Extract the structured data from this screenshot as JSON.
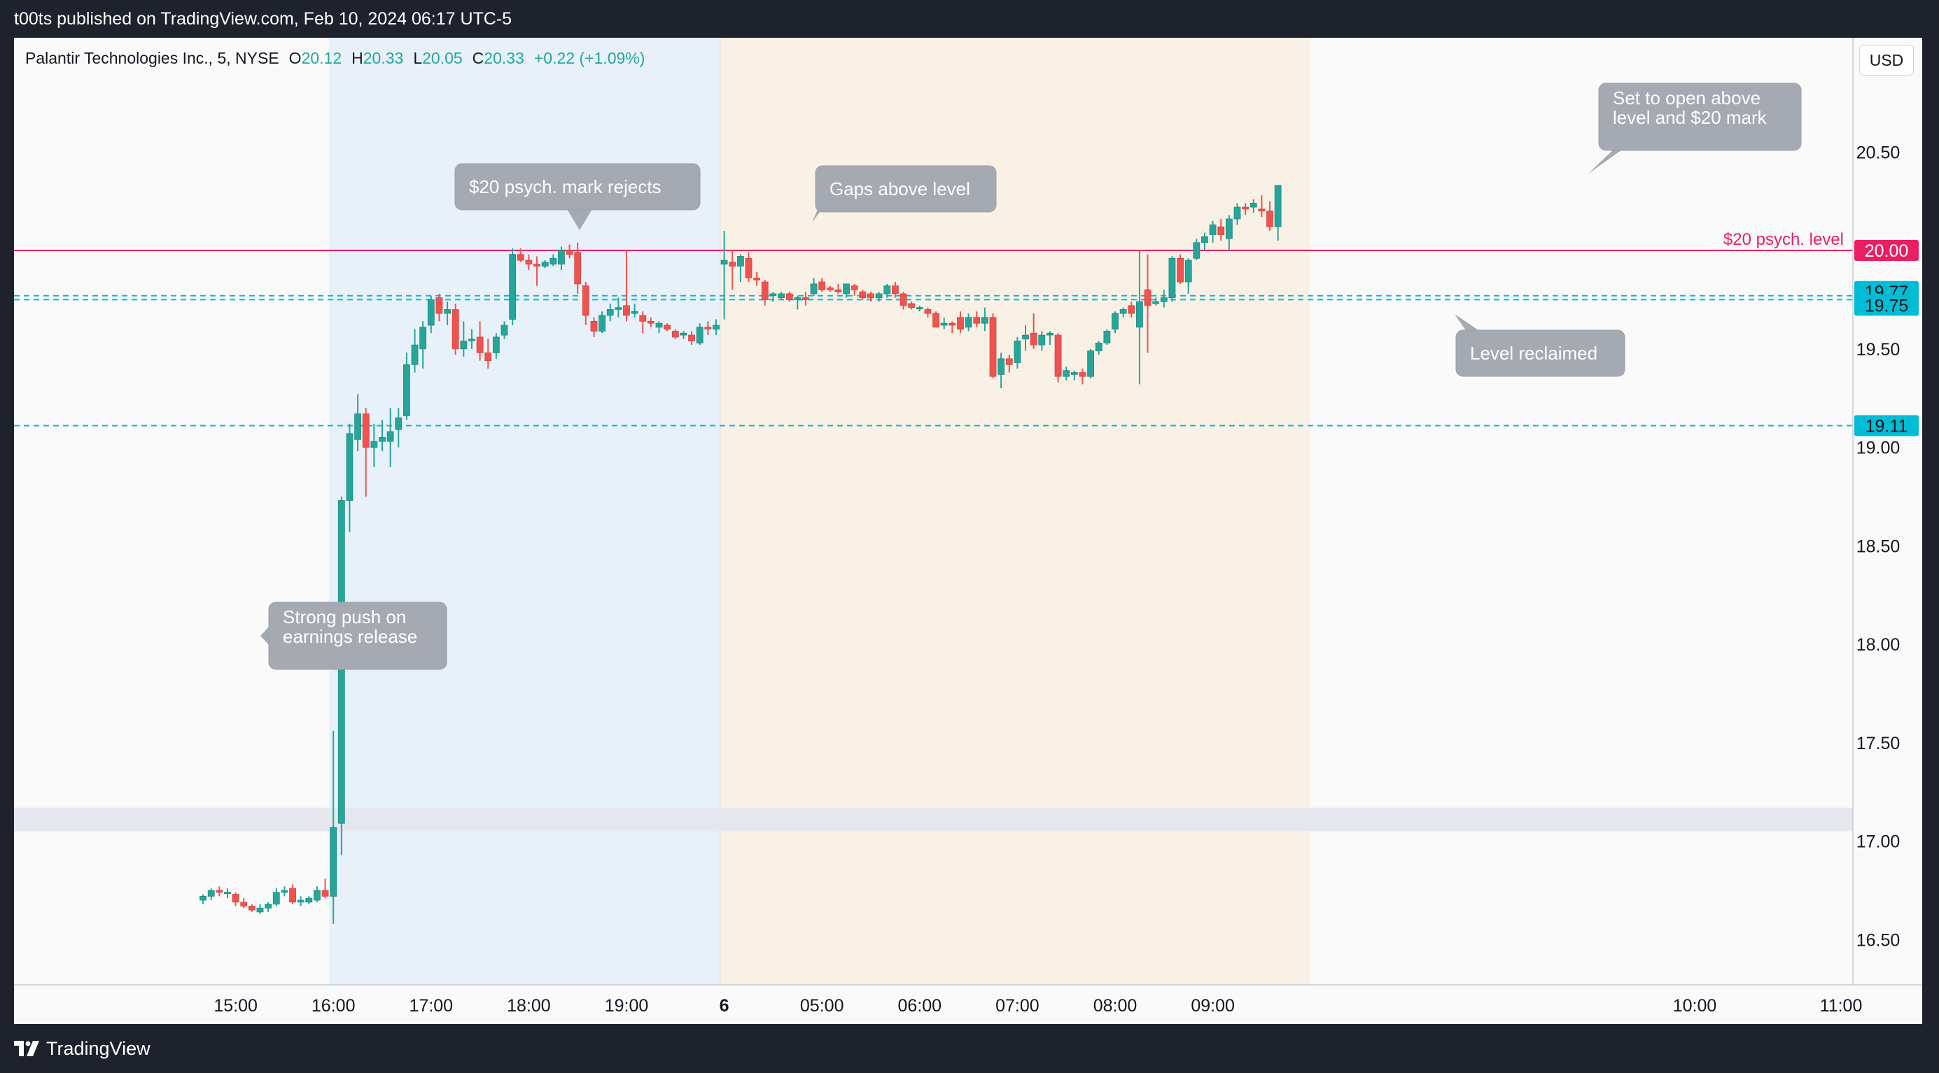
{
  "header": {
    "published_text": "t00ts published on TradingView.com, Feb 10, 2024 06:17 UTC-5"
  },
  "legend": {
    "symbol": "Palantir Technologies Inc., 5, NYSE",
    "open_label": "O",
    "open": "20.12",
    "high_label": "H",
    "high": "20.33",
    "low_label": "L",
    "low": "20.05",
    "close_label": "C",
    "close": "20.33",
    "change": "+0.22 (+1.09%)"
  },
  "currency": "USD",
  "footer": {
    "brand": "TradingView"
  },
  "colors": {
    "up": "#26a69a",
    "down": "#ef5350",
    "level_psych": "#e91e63",
    "level_dashed": "#00bcd4",
    "session_post": "#e8f1fa",
    "session_pre": "#faf1e6",
    "callout": "#a5a9b1"
  },
  "chart_data": {
    "type": "candlestick",
    "symbol": "PLTR",
    "interval": "5",
    "x_tick_labels": [
      "15:00",
      "16:00",
      "17:00",
      "18:00",
      "19:00",
      "6",
      "05:00",
      "06:00",
      "07:00",
      "08:00",
      "09:00",
      "10:00",
      "11:00"
    ],
    "y_tick_labels": [
      "20.50",
      "20.00",
      "19.50",
      "19.00",
      "18.50",
      "18.00",
      "17.50",
      "17.00",
      "16.50"
    ],
    "ylim": [
      16.27,
      21.08
    ],
    "price_levels": [
      {
        "price": 20.0,
        "label": "20.00",
        "color": "#e91e63",
        "style": "solid",
        "name": "$20 psych. level"
      },
      {
        "price": 19.77,
        "label": "19.77",
        "color": "#00bcd4",
        "style": "dashed"
      },
      {
        "price": 19.75,
        "label": "19.75",
        "color": "#00bcd4",
        "style": "dashed"
      },
      {
        "price": 19.11,
        "label": "19.11",
        "color": "#00bcd4",
        "style": "dashed"
      }
    ],
    "gap_zone": [
      17.05,
      17.17
    ],
    "sessions": [
      {
        "name": "post-market",
        "from": "16:00",
        "to": "20:00"
      },
      {
        "name": "pre-market",
        "from": "04:00",
        "to": "09:30"
      }
    ],
    "annotations": [
      {
        "text": "$20 psych. mark rejects",
        "at": "18:30"
      },
      {
        "text": "Gaps above level",
        "at": "04:00"
      },
      {
        "text": "Set to open above level and $20 mark",
        "at": "09:25"
      },
      {
        "text": "Level reclaimed",
        "at": "08:30"
      },
      {
        "text": "Strong push on earnings release",
        "at": "16:25"
      }
    ],
    "annotation_lines": {
      "a0": [
        "$20 psych. mark rejects"
      ],
      "a1": [
        "Gaps above level"
      ],
      "a2": [
        "Set to open above",
        "level and $20 mark"
      ],
      "a3": [
        "Level reclaimed"
      ],
      "a4": [
        "Strong push on",
        "earnings release"
      ]
    },
    "candles": [
      {
        "t": "14:40",
        "o": 16.7,
        "h": 16.73,
        "l": 16.68,
        "c": 16.72
      },
      {
        "t": "14:45",
        "o": 16.72,
        "h": 16.76,
        "l": 16.7,
        "c": 16.75
      },
      {
        "t": "14:50",
        "o": 16.75,
        "h": 16.77,
        "l": 16.72,
        "c": 16.74
      },
      {
        "t": "14:55",
        "o": 16.74,
        "h": 16.76,
        "l": 16.71,
        "c": 16.74
      },
      {
        "t": "15:00",
        "o": 16.73,
        "h": 16.74,
        "l": 16.67,
        "c": 16.69
      },
      {
        "t": "15:05",
        "o": 16.69,
        "h": 16.71,
        "l": 16.66,
        "c": 16.67
      },
      {
        "t": "15:10",
        "o": 16.67,
        "h": 16.68,
        "l": 16.64,
        "c": 16.65
      },
      {
        "t": "15:15",
        "o": 16.64,
        "h": 16.68,
        "l": 16.63,
        "c": 16.66
      },
      {
        "t": "15:20",
        "o": 16.66,
        "h": 16.69,
        "l": 16.64,
        "c": 16.68
      },
      {
        "t": "15:25",
        "o": 16.68,
        "h": 16.76,
        "l": 16.67,
        "c": 16.74
      },
      {
        "t": "15:30",
        "o": 16.74,
        "h": 16.77,
        "l": 16.72,
        "c": 16.75
      },
      {
        "t": "15:35",
        "o": 16.76,
        "h": 16.78,
        "l": 16.68,
        "c": 16.69
      },
      {
        "t": "15:40",
        "o": 16.69,
        "h": 16.72,
        "l": 16.67,
        "c": 16.7
      },
      {
        "t": "15:45",
        "o": 16.69,
        "h": 16.72,
        "l": 16.68,
        "c": 16.71
      },
      {
        "t": "15:50",
        "o": 16.7,
        "h": 16.77,
        "l": 16.69,
        "c": 16.75
      },
      {
        "t": "15:55",
        "o": 16.75,
        "h": 16.81,
        "l": 16.71,
        "c": 16.72
      },
      {
        "t": "16:00",
        "o": 16.72,
        "h": 17.56,
        "l": 16.58,
        "c": 17.07
      },
      {
        "t": "16:05",
        "o": 17.09,
        "h": 18.75,
        "l": 16.93,
        "c": 18.73
      },
      {
        "t": "16:10",
        "o": 18.73,
        "h": 19.12,
        "l": 18.57,
        "c": 19.07
      },
      {
        "t": "16:15",
        "o": 19.04,
        "h": 19.27,
        "l": 18.98,
        "c": 19.17
      },
      {
        "t": "16:20",
        "o": 19.17,
        "h": 19.2,
        "l": 18.75,
        "c": 19.0
      },
      {
        "t": "16:25",
        "o": 19.0,
        "h": 19.12,
        "l": 18.9,
        "c": 19.03
      },
      {
        "t": "16:30",
        "o": 19.03,
        "h": 19.14,
        "l": 18.98,
        "c": 19.05
      },
      {
        "t": "16:35",
        "o": 19.03,
        "h": 19.2,
        "l": 18.9,
        "c": 19.08
      },
      {
        "t": "16:40",
        "o": 19.09,
        "h": 19.2,
        "l": 19.0,
        "c": 19.15
      },
      {
        "t": "16:45",
        "o": 19.16,
        "h": 19.48,
        "l": 19.14,
        "c": 19.42
      },
      {
        "t": "16:50",
        "o": 19.42,
        "h": 19.6,
        "l": 19.38,
        "c": 19.52
      },
      {
        "t": "16:55",
        "o": 19.5,
        "h": 19.64,
        "l": 19.4,
        "c": 19.61
      },
      {
        "t": "17:00",
        "o": 19.62,
        "h": 19.77,
        "l": 19.58,
        "c": 19.75
      },
      {
        "t": "17:05",
        "o": 19.76,
        "h": 19.78,
        "l": 19.64,
        "c": 19.68
      },
      {
        "t": "17:10",
        "o": 19.68,
        "h": 19.74,
        "l": 19.62,
        "c": 19.7
      },
      {
        "t": "17:15",
        "o": 19.7,
        "h": 19.73,
        "l": 19.47,
        "c": 19.5
      },
      {
        "t": "17:20",
        "o": 19.5,
        "h": 19.64,
        "l": 19.46,
        "c": 19.54
      },
      {
        "t": "17:25",
        "o": 19.54,
        "h": 19.6,
        "l": 19.5,
        "c": 19.55
      },
      {
        "t": "17:30",
        "o": 19.56,
        "h": 19.64,
        "l": 19.44,
        "c": 19.48
      },
      {
        "t": "17:35",
        "o": 19.48,
        "h": 19.55,
        "l": 19.4,
        "c": 19.44
      },
      {
        "t": "17:40",
        "o": 19.48,
        "h": 19.58,
        "l": 19.45,
        "c": 19.56
      },
      {
        "t": "17:45",
        "o": 19.57,
        "h": 19.64,
        "l": 19.55,
        "c": 19.62
      },
      {
        "t": "17:50",
        "o": 19.65,
        "h": 20.01,
        "l": 19.62,
        "c": 19.98
      },
      {
        "t": "17:55",
        "o": 19.98,
        "h": 20.01,
        "l": 19.94,
        "c": 19.95
      },
      {
        "t": "18:00",
        "o": 19.95,
        "h": 19.98,
        "l": 19.9,
        "c": 19.93
      },
      {
        "t": "18:05",
        "o": 19.93,
        "h": 19.97,
        "l": 19.82,
        "c": 19.92
      },
      {
        "t": "18:10",
        "o": 19.92,
        "h": 19.95,
        "l": 19.91,
        "c": 19.94
      },
      {
        "t": "18:15",
        "o": 19.93,
        "h": 19.98,
        "l": 19.92,
        "c": 19.96
      },
      {
        "t": "18:20",
        "o": 19.93,
        "h": 20.02,
        "l": 19.9,
        "c": 20.0
      },
      {
        "t": "18:25",
        "o": 20.0,
        "h": 20.03,
        "l": 19.96,
        "c": 19.98
      },
      {
        "t": "18:30",
        "o": 19.99,
        "h": 20.04,
        "l": 19.78,
        "c": 19.83
      },
      {
        "t": "18:35",
        "o": 19.82,
        "h": 19.84,
        "l": 19.62,
        "c": 19.67
      },
      {
        "t": "18:40",
        "o": 19.64,
        "h": 19.66,
        "l": 19.56,
        "c": 19.59
      },
      {
        "t": "18:45",
        "o": 19.59,
        "h": 19.69,
        "l": 19.58,
        "c": 19.67
      },
      {
        "t": "18:50",
        "o": 19.67,
        "h": 19.73,
        "l": 19.64,
        "c": 19.7
      },
      {
        "t": "18:55",
        "o": 19.7,
        "h": 19.76,
        "l": 19.66,
        "c": 19.71
      },
      {
        "t": "19:00",
        "o": 19.72,
        "h": 20.0,
        "l": 19.64,
        "c": 19.67
      },
      {
        "t": "19:05",
        "o": 19.68,
        "h": 19.73,
        "l": 19.66,
        "c": 19.69
      },
      {
        "t": "19:10",
        "o": 19.67,
        "h": 19.69,
        "l": 19.58,
        "c": 19.64
      },
      {
        "t": "19:15",
        "o": 19.64,
        "h": 19.66,
        "l": 19.61,
        "c": 19.63
      },
      {
        "t": "19:20",
        "o": 19.61,
        "h": 19.64,
        "l": 19.58,
        "c": 19.63
      },
      {
        "t": "19:25",
        "o": 19.62,
        "h": 19.63,
        "l": 19.59,
        "c": 19.6
      },
      {
        "t": "19:30",
        "o": 19.59,
        "h": 19.6,
        "l": 19.55,
        "c": 19.56
      },
      {
        "t": "19:35",
        "o": 19.57,
        "h": 19.59,
        "l": 19.55,
        "c": 19.58
      },
      {
        "t": "19:40",
        "o": 19.57,
        "h": 19.59,
        "l": 19.52,
        "c": 19.54
      },
      {
        "t": "19:45",
        "o": 19.53,
        "h": 19.63,
        "l": 19.52,
        "c": 19.61
      },
      {
        "t": "19:50",
        "o": 19.61,
        "h": 19.64,
        "l": 19.57,
        "c": 19.6
      },
      {
        "t": "19:55",
        "o": 19.6,
        "h": 19.65,
        "l": 19.57,
        "c": 19.62
      },
      {
        "t": "04:00",
        "o": 19.93,
        "h": 20.1,
        "l": 19.65,
        "c": 19.95
      },
      {
        "t": "04:05",
        "o": 19.94,
        "h": 20.0,
        "l": 19.8,
        "c": 19.92
      },
      {
        "t": "04:10",
        "o": 19.92,
        "h": 19.98,
        "l": 19.84,
        "c": 19.97
      },
      {
        "t": "04:15",
        "o": 19.96,
        "h": 19.99,
        "l": 19.84,
        "c": 19.86
      },
      {
        "t": "04:20",
        "o": 19.86,
        "h": 19.89,
        "l": 19.82,
        "c": 19.85
      },
      {
        "t": "04:25",
        "o": 19.84,
        "h": 19.85,
        "l": 19.72,
        "c": 19.75
      },
      {
        "t": "04:30",
        "o": 19.77,
        "h": 19.79,
        "l": 19.74,
        "c": 19.78
      },
      {
        "t": "04:35",
        "o": 19.76,
        "h": 19.79,
        "l": 19.75,
        "c": 19.78
      },
      {
        "t": "04:40",
        "o": 19.78,
        "h": 19.79,
        "l": 19.74,
        "c": 19.75
      },
      {
        "t": "04:45",
        "o": 19.75,
        "h": 19.77,
        "l": 19.7,
        "c": 19.76
      },
      {
        "t": "04:50",
        "o": 19.76,
        "h": 19.79,
        "l": 19.72,
        "c": 19.75
      },
      {
        "t": "04:55",
        "o": 19.78,
        "h": 19.86,
        "l": 19.77,
        "c": 19.83
      },
      {
        "t": "05:00",
        "o": 19.84,
        "h": 19.86,
        "l": 19.79,
        "c": 19.8
      },
      {
        "t": "05:05",
        "o": 19.81,
        "h": 19.82,
        "l": 19.79,
        "c": 19.8
      },
      {
        "t": "05:10",
        "o": 19.8,
        "h": 19.83,
        "l": 19.78,
        "c": 19.79
      },
      {
        "t": "05:15",
        "o": 19.78,
        "h": 19.83,
        "l": 19.76,
        "c": 19.83
      },
      {
        "t": "05:20",
        "o": 19.82,
        "h": 19.83,
        "l": 19.77,
        "c": 19.8
      },
      {
        "t": "05:25",
        "o": 19.79,
        "h": 19.8,
        "l": 19.75,
        "c": 19.76
      },
      {
        "t": "05:30",
        "o": 19.78,
        "h": 19.79,
        "l": 19.74,
        "c": 19.76
      },
      {
        "t": "05:35",
        "o": 19.76,
        "h": 19.79,
        "l": 19.74,
        "c": 19.78
      },
      {
        "t": "05:40",
        "o": 19.78,
        "h": 19.83,
        "l": 19.76,
        "c": 19.82
      },
      {
        "t": "05:45",
        "o": 19.82,
        "h": 19.84,
        "l": 19.76,
        "c": 19.78
      },
      {
        "t": "05:50",
        "o": 19.78,
        "h": 19.79,
        "l": 19.7,
        "c": 19.72
      },
      {
        "t": "05:55",
        "o": 19.73,
        "h": 19.74,
        "l": 19.7,
        "c": 19.71
      },
      {
        "t": "06:00",
        "o": 19.71,
        "h": 19.72,
        "l": 19.69,
        "c": 19.71
      },
      {
        "t": "06:05",
        "o": 19.7,
        "h": 19.71,
        "l": 19.66,
        "c": 19.68
      },
      {
        "t": "06:10",
        "o": 19.68,
        "h": 19.69,
        "l": 19.61,
        "c": 19.61
      },
      {
        "t": "06:15",
        "o": 19.62,
        "h": 19.66,
        "l": 19.6,
        "c": 19.63
      },
      {
        "t": "06:20",
        "o": 19.63,
        "h": 19.64,
        "l": 19.58,
        "c": 19.62
      },
      {
        "t": "06:25",
        "o": 19.66,
        "h": 19.69,
        "l": 19.58,
        "c": 19.6
      },
      {
        "t": "06:30",
        "o": 19.61,
        "h": 19.68,
        "l": 19.59,
        "c": 19.66
      },
      {
        "t": "06:35",
        "o": 19.66,
        "h": 19.69,
        "l": 19.61,
        "c": 19.63
      },
      {
        "t": "06:40",
        "o": 19.63,
        "h": 19.71,
        "l": 19.59,
        "c": 19.66
      },
      {
        "t": "06:45",
        "o": 19.66,
        "h": 19.68,
        "l": 19.35,
        "c": 19.36
      },
      {
        "t": "06:50",
        "o": 19.37,
        "h": 19.48,
        "l": 19.3,
        "c": 19.45
      },
      {
        "t": "06:55",
        "o": 19.45,
        "h": 19.47,
        "l": 19.38,
        "c": 19.42
      },
      {
        "t": "07:00",
        "o": 19.43,
        "h": 19.56,
        "l": 19.4,
        "c": 19.54
      },
      {
        "t": "07:05",
        "o": 19.55,
        "h": 19.62,
        "l": 19.49,
        "c": 19.57
      },
      {
        "t": "07:10",
        "o": 19.58,
        "h": 19.68,
        "l": 19.5,
        "c": 19.52
      },
      {
        "t": "07:15",
        "o": 19.52,
        "h": 19.59,
        "l": 19.49,
        "c": 19.57
      },
      {
        "t": "07:20",
        "o": 19.57,
        "h": 19.59,
        "l": 19.52,
        "c": 19.58
      },
      {
        "t": "07:25",
        "o": 19.57,
        "h": 19.58,
        "l": 19.33,
        "c": 19.36
      },
      {
        "t": "07:30",
        "o": 19.36,
        "h": 19.41,
        "l": 19.34,
        "c": 19.39
      },
      {
        "t": "07:35",
        "o": 19.37,
        "h": 19.39,
        "l": 19.34,
        "c": 19.38
      },
      {
        "t": "07:40",
        "o": 19.38,
        "h": 19.4,
        "l": 19.32,
        "c": 19.36
      },
      {
        "t": "07:45",
        "o": 19.36,
        "h": 19.5,
        "l": 19.35,
        "c": 19.49
      },
      {
        "t": "07:50",
        "o": 19.49,
        "h": 19.54,
        "l": 19.47,
        "c": 19.53
      },
      {
        "t": "07:55",
        "o": 19.53,
        "h": 19.6,
        "l": 19.52,
        "c": 19.59
      },
      {
        "t": "08:00",
        "o": 19.6,
        "h": 19.69,
        "l": 19.58,
        "c": 19.68
      },
      {
        "t": "08:05",
        "o": 19.68,
        "h": 19.71,
        "l": 19.66,
        "c": 19.7
      },
      {
        "t": "08:10",
        "o": 19.72,
        "h": 19.74,
        "l": 19.66,
        "c": 19.68
      },
      {
        "t": "08:15",
        "o": 19.61,
        "h": 20.0,
        "l": 19.32,
        "c": 19.74
      },
      {
        "t": "08:20",
        "o": 19.8,
        "h": 19.98,
        "l": 19.48,
        "c": 19.72
      },
      {
        "t": "08:25",
        "o": 19.73,
        "h": 19.76,
        "l": 19.72,
        "c": 19.74
      },
      {
        "t": "08:30",
        "o": 19.74,
        "h": 19.8,
        "l": 19.71,
        "c": 19.76
      },
      {
        "t": "08:35",
        "o": 19.76,
        "h": 19.97,
        "l": 19.74,
        "c": 19.96
      },
      {
        "t": "08:40",
        "o": 19.96,
        "h": 19.98,
        "l": 19.83,
        "c": 19.84
      },
      {
        "t": "08:45",
        "o": 19.84,
        "h": 19.96,
        "l": 19.78,
        "c": 19.95
      },
      {
        "t": "08:50",
        "o": 19.96,
        "h": 20.06,
        "l": 19.95,
        "c": 20.04
      },
      {
        "t": "08:55",
        "o": 20.04,
        "h": 20.09,
        "l": 20.0,
        "c": 20.07
      },
      {
        "t": "09:00",
        "o": 20.08,
        "h": 20.15,
        "l": 20.04,
        "c": 20.13
      },
      {
        "t": "09:05",
        "o": 20.12,
        "h": 20.16,
        "l": 20.05,
        "c": 20.08
      },
      {
        "t": "09:10",
        "o": 20.06,
        "h": 20.18,
        "l": 20.0,
        "c": 20.16
      },
      {
        "t": "09:15",
        "o": 20.16,
        "h": 20.24,
        "l": 20.13,
        "c": 20.22
      },
      {
        "t": "09:20",
        "o": 20.22,
        "h": 20.24,
        "l": 20.18,
        "c": 20.21
      },
      {
        "t": "09:25",
        "o": 20.22,
        "h": 20.26,
        "l": 20.19,
        "c": 20.24
      },
      {
        "t": "09:30",
        "o": 20.21,
        "h": 20.28,
        "l": 20.17,
        "c": 20.2
      },
      {
        "t": "09:35",
        "o": 20.2,
        "h": 20.25,
        "l": 20.1,
        "c": 20.12
      },
      {
        "t": "09:40",
        "o": 20.12,
        "h": 20.33,
        "l": 20.05,
        "c": 20.33
      }
    ]
  }
}
